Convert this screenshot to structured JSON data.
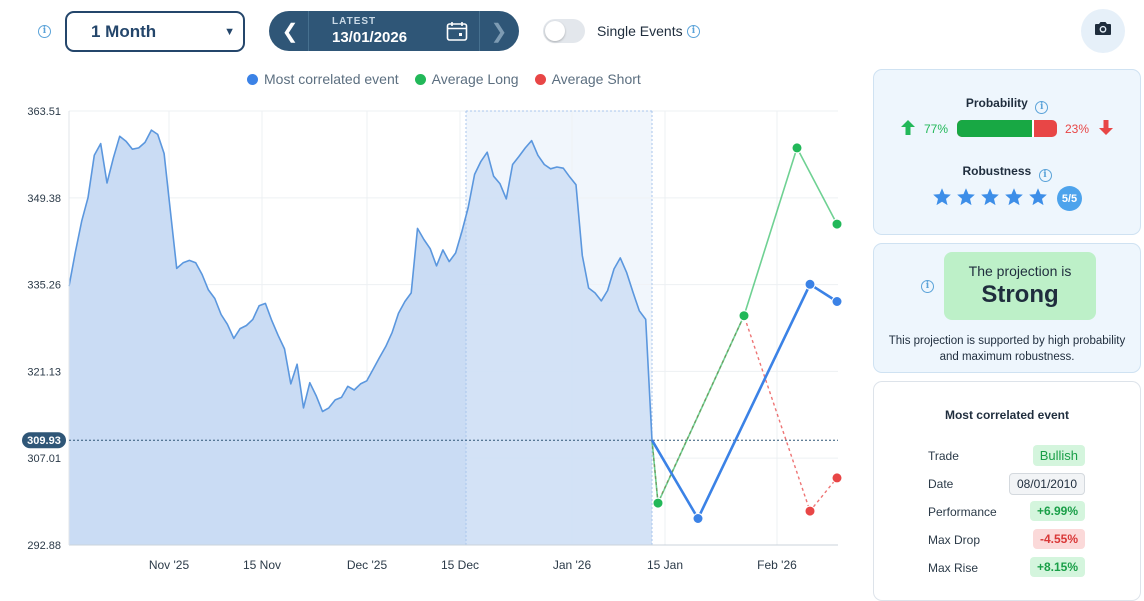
{
  "header": {
    "period_select": "1 Month",
    "date_nav": {
      "label": "LATEST",
      "date": "13/01/2026"
    },
    "toggle_label": "Single Events"
  },
  "legend": [
    {
      "label": "Most correlated event",
      "color": "#3b82e6"
    },
    {
      "label": "Average Long",
      "color": "#22b859"
    },
    {
      "label": "Average Short",
      "color": "#e84646"
    }
  ],
  "chart_data": {
    "type": "line",
    "ylim": [
      292.88,
      363.51
    ],
    "y_ticks": [
      "363.51",
      "349.38",
      "335.26",
      "321.13",
      "307.01",
      "292.88"
    ],
    "x_ticks": [
      "Nov '25",
      "15 Nov",
      "Dec '25",
      "15 Dec",
      "Jan '26",
      "15 Jan",
      "Feb '26"
    ],
    "current_value": "309.93",
    "history": [
      335.0,
      340.5,
      345.6,
      349.4,
      356.3,
      358.2,
      351.8,
      355.9,
      359.4,
      358.6,
      357.3,
      357.5,
      358.4,
      360.4,
      359.7,
      356.6,
      347.2,
      337.9,
      338.8,
      339.2,
      338.8,
      336.9,
      334.4,
      333.0,
      330.4,
      328.8,
      326.5,
      328.1,
      328.6,
      329.6,
      331.8,
      332.2,
      329.4,
      327.0,
      324.8,
      319.1,
      322.3,
      315.2,
      319.3,
      317.2,
      314.6,
      315.2,
      316.5,
      316.9,
      318.7,
      318.1,
      319.1,
      319.6,
      321.5,
      323.4,
      325.2,
      327.5,
      330.6,
      332.5,
      333.9,
      344.4,
      342.6,
      341.1,
      338.3,
      340.9,
      339.0,
      340.4,
      343.9,
      347.8,
      353.2,
      355.3,
      356.8,
      352.9,
      351.7,
      349.2,
      354.8,
      356.1,
      357.5,
      358.7,
      356.3,
      354.8,
      354.1,
      354.4,
      354.2,
      352.8,
      351.5,
      340.0,
      334.7,
      333.9,
      332.6,
      334.3,
      337.8,
      339.6,
      337.2,
      334.0,
      331.0,
      329.6,
      309.93
    ],
    "history_x_end": "15 Jan",
    "series": [
      {
        "name": "Most correlated event",
        "points": [
          309.93,
          297.2,
          335.3,
          332.5
        ]
      },
      {
        "name": "Average Long",
        "points": [
          309.93,
          299.7,
          330.2,
          357.5,
          345.1
        ]
      },
      {
        "name": "Average Short",
        "points": [
          309.93,
          299.8,
          330.2,
          298.4,
          303.8
        ]
      }
    ]
  },
  "probability": {
    "title": "Probability",
    "long_pct": "77%",
    "short_pct": "23%",
    "long_fraction": 0.77
  },
  "robustness": {
    "title": "Robustness",
    "stars": 5,
    "max": 5,
    "badge": "5/5"
  },
  "projection": {
    "label": "The projection is",
    "value": "Strong",
    "description": "This projection is supported by high probability and maximum robustness."
  },
  "event": {
    "title": "Most correlated event",
    "rows": [
      {
        "label": "Trade",
        "value": "Bullish",
        "style": "green"
      },
      {
        "label": "Date",
        "value": "08/01/2010",
        "style": "gray"
      },
      {
        "label": "Performance",
        "value": "+6.99%",
        "style": "green"
      },
      {
        "label": "Max Drop",
        "value": "-4.55%",
        "style": "red"
      },
      {
        "label": "Max Rise",
        "value": "+8.15%",
        "style": "green"
      }
    ]
  },
  "colors": {
    "primary": "#24466b",
    "blue": "#3b82e6",
    "green": "#22b859",
    "red": "#e84646",
    "area": "#c5d9f2"
  }
}
